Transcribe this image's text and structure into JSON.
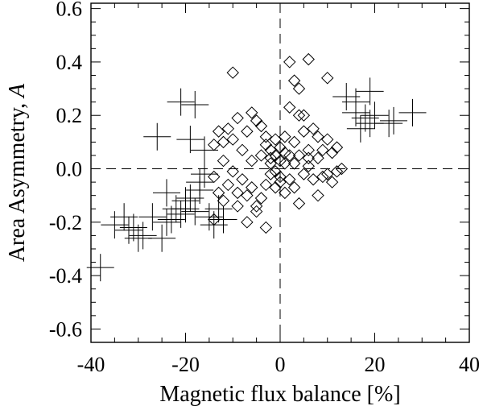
{
  "chart_data": {
    "type": "scatter",
    "xlabel": "Magnetic flux balance [%]",
    "ylabel": "Area Asymmetry, ",
    "ylabel_symbol": "A",
    "xlim": [
      -40,
      40
    ],
    "ylim": [
      -0.65,
      0.62
    ],
    "x_ticks": [
      -40,
      -20,
      0,
      20,
      40
    ],
    "x_tick_labels": [
      "-40",
      "-20",
      "0",
      "20",
      "40"
    ],
    "y_ticks": [
      -0.6,
      -0.4,
      -0.2,
      0.0,
      0.2,
      0.4,
      0.6
    ],
    "y_tick_labels": [
      "-0.6",
      "-0.4",
      "-0.2",
      "0.0",
      "0.2",
      "0.4",
      "0.6"
    ],
    "grid": false,
    "reference_lines": [
      {
        "orientation": "horizontal",
        "value": 0,
        "style": "dashed"
      },
      {
        "orientation": "vertical",
        "value": 0,
        "style": "dashed"
      }
    ],
    "series": [
      {
        "marker": "plus",
        "color": "#000000",
        "points": [
          [
            -38,
            -0.37
          ],
          [
            -35,
            -0.21
          ],
          [
            -33,
            -0.18
          ],
          [
            -32,
            -0.23
          ],
          [
            -31,
            -0.22
          ],
          [
            -30,
            -0.26
          ],
          [
            -29,
            -0.25
          ],
          [
            -27,
            -0.18
          ],
          [
            -26,
            0.12
          ],
          [
            -25,
            -0.26
          ],
          [
            -24,
            -0.2
          ],
          [
            -24,
            -0.09
          ],
          [
            -23,
            -0.19
          ],
          [
            -22,
            -0.15
          ],
          [
            -21,
            -0.17
          ],
          [
            -21,
            0.25
          ],
          [
            -20,
            -0.15
          ],
          [
            -20,
            -0.12
          ],
          [
            -19,
            -0.11
          ],
          [
            -19,
            0.11
          ],
          [
            -18,
            -0.16
          ],
          [
            -18,
            0.24
          ],
          [
            -17,
            -0.05
          ],
          [
            -17,
            -0.08
          ],
          [
            -16,
            0.07
          ],
          [
            -16,
            -0.02
          ],
          [
            -15,
            -0.18
          ],
          [
            -14,
            -0.21
          ],
          [
            -13,
            -0.15
          ],
          [
            -12,
            -0.19
          ],
          [
            14,
            0.27
          ],
          [
            16,
            0.25
          ],
          [
            16,
            0.21
          ],
          [
            17,
            0.15
          ],
          [
            18,
            0.19
          ],
          [
            19,
            0.29
          ],
          [
            19,
            0.17
          ],
          [
            20,
            0.2
          ],
          [
            23,
            0.17
          ],
          [
            24,
            0.18
          ],
          [
            28,
            0.21
          ]
        ]
      },
      {
        "marker": "diamond",
        "color": "#000000",
        "points": [
          [
            -10,
            0.36
          ],
          [
            -14,
            0.09
          ],
          [
            -13,
            0.14
          ],
          [
            -12,
            0.1
          ],
          [
            -11,
            0.15
          ],
          [
            -10,
            0.11
          ],
          [
            -9,
            0.19
          ],
          [
            -8,
            0.07
          ],
          [
            -7,
            0.14
          ],
          [
            -6,
            0.21
          ],
          [
            -6,
            0.03
          ],
          [
            -5,
            0.18
          ],
          [
            -4,
            0.16
          ],
          [
            -4,
            0.05
          ],
          [
            -3,
            0.09
          ],
          [
            -3,
            0.12
          ],
          [
            -2,
            0.07
          ],
          [
            -2,
            0.02
          ],
          [
            -1,
            0.05
          ],
          [
            -1,
            0.11
          ],
          [
            0,
            0.03
          ],
          [
            0,
            0.08
          ],
          [
            1,
            0.06
          ],
          [
            1,
            0.02
          ],
          [
            2,
            0.23
          ],
          [
            2,
            0.05
          ],
          [
            3,
            0.33
          ],
          [
            3,
            0.1
          ],
          [
            4,
            0.3
          ],
          [
            4,
            0.05
          ],
          [
            5,
            0.2
          ],
          [
            5,
            0.14
          ],
          [
            6,
            0.01
          ],
          [
            6,
            0.07
          ],
          [
            7,
            0.15
          ],
          [
            8,
            0.04
          ],
          [
            9,
            0.07
          ],
          [
            10,
            0.34
          ],
          [
            10,
            0.11
          ],
          [
            11,
            0.06
          ],
          [
            12,
            0.08
          ],
          [
            13,
            0.0
          ],
          [
            2,
            0.4
          ],
          [
            6,
            0.41
          ],
          [
            4,
            0.2
          ],
          [
            3,
            0.02
          ],
          [
            1,
            0.12
          ],
          [
            -1,
            -0.01
          ],
          [
            -14,
            -0.03
          ],
          [
            -13,
            -0.09
          ],
          [
            -12,
            -0.12
          ],
          [
            -11,
            -0.06
          ],
          [
            -10,
            -0.01
          ],
          [
            -9,
            -0.14
          ],
          [
            -8,
            -0.04
          ],
          [
            -7,
            -0.1
          ],
          [
            -6,
            -0.07
          ],
          [
            -5,
            -0.16
          ],
          [
            -4,
            -0.11
          ],
          [
            -3,
            -0.06
          ],
          [
            -2,
            -0.02
          ],
          [
            -1,
            -0.07
          ],
          [
            0,
            -0.03
          ],
          [
            0,
            -0.05
          ],
          [
            1,
            -0.09
          ],
          [
            2,
            -0.04
          ],
          [
            3,
            -0.07
          ],
          [
            4,
            -0.13
          ],
          [
            5,
            -0.02
          ],
          [
            7,
            -0.04
          ],
          [
            8,
            -0.1
          ],
          [
            9,
            -0.03
          ],
          [
            11,
            -0.05
          ],
          [
            12,
            -0.01
          ],
          [
            -14,
            -0.19
          ],
          [
            -7,
            -0.2
          ],
          [
            -5,
            -0.14
          ],
          [
            -3,
            -0.22
          ],
          [
            -9,
            -0.09
          ],
          [
            -12,
            0.03
          ],
          [
            6,
            0.04
          ],
          [
            8,
            0.12
          ],
          [
            10,
            -0.02
          ],
          [
            -2,
            0.04
          ]
        ]
      }
    ]
  }
}
